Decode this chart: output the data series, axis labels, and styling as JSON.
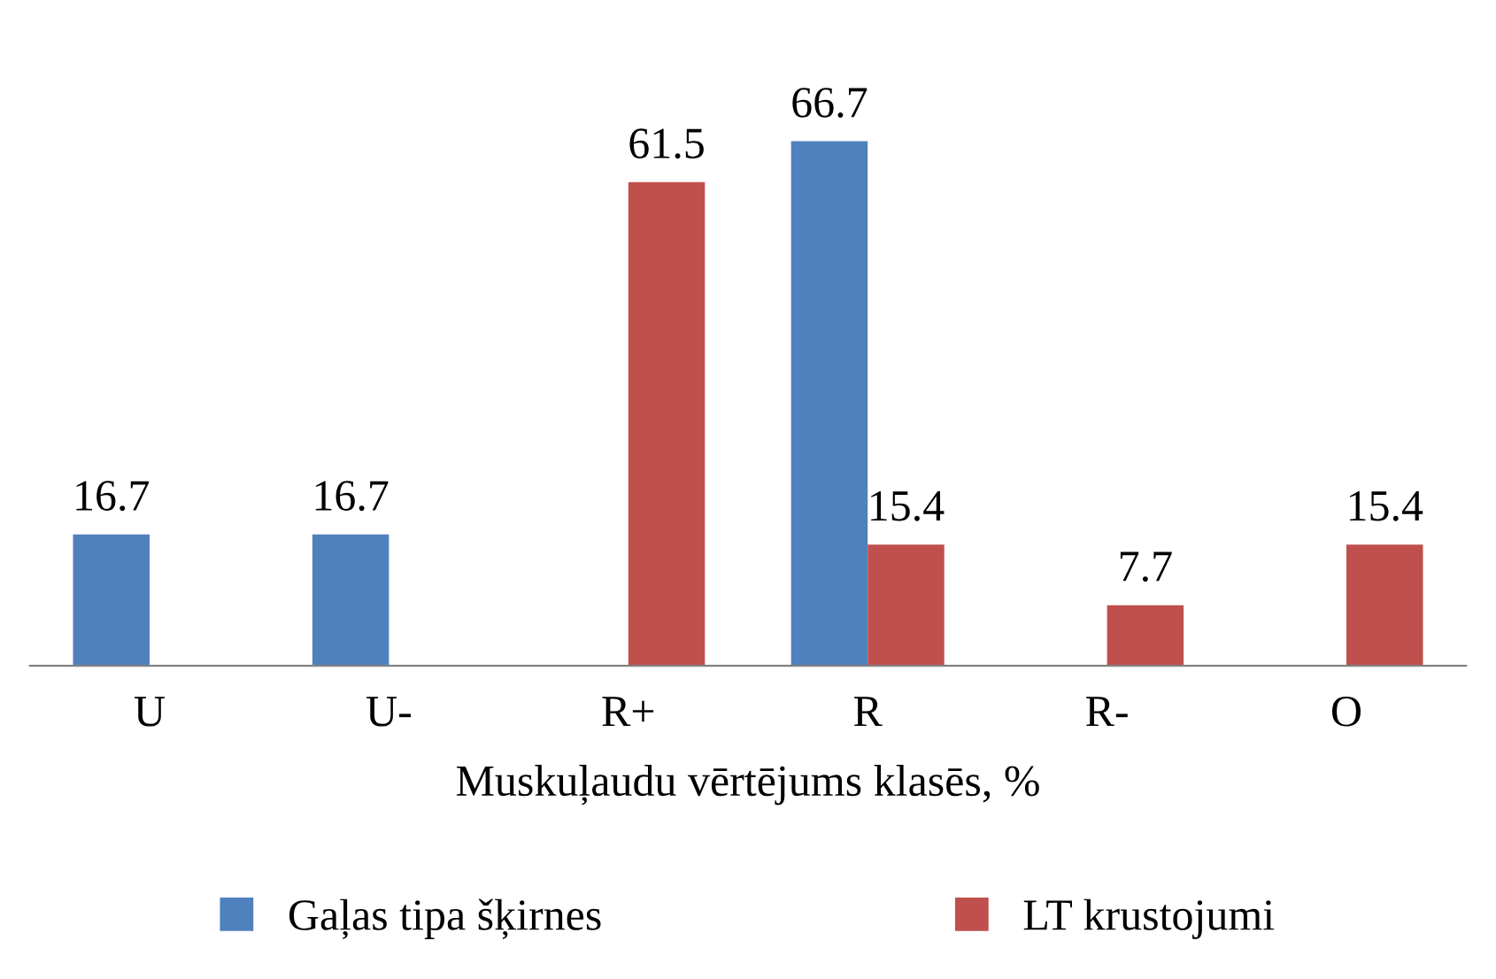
{
  "chart_data": {
    "type": "bar",
    "xlabel": "Muskuļaudu vērtējums klasēs, %",
    "categories": [
      "U",
      "U-",
      "R+",
      "R",
      "R-",
      "O"
    ],
    "series": [
      {
        "name": "Gaļas tipa šķirnes",
        "color": "#4f81bd",
        "values": [
          16.7,
          16.7,
          null,
          66.7,
          null,
          null
        ]
      },
      {
        "name": "LT krustojumi",
        "color": "#c0504d",
        "values": [
          null,
          null,
          61.5,
          15.4,
          7.7,
          15.4
        ]
      }
    ],
    "data_labels": true,
    "legend": "bottom",
    "grid": false
  }
}
